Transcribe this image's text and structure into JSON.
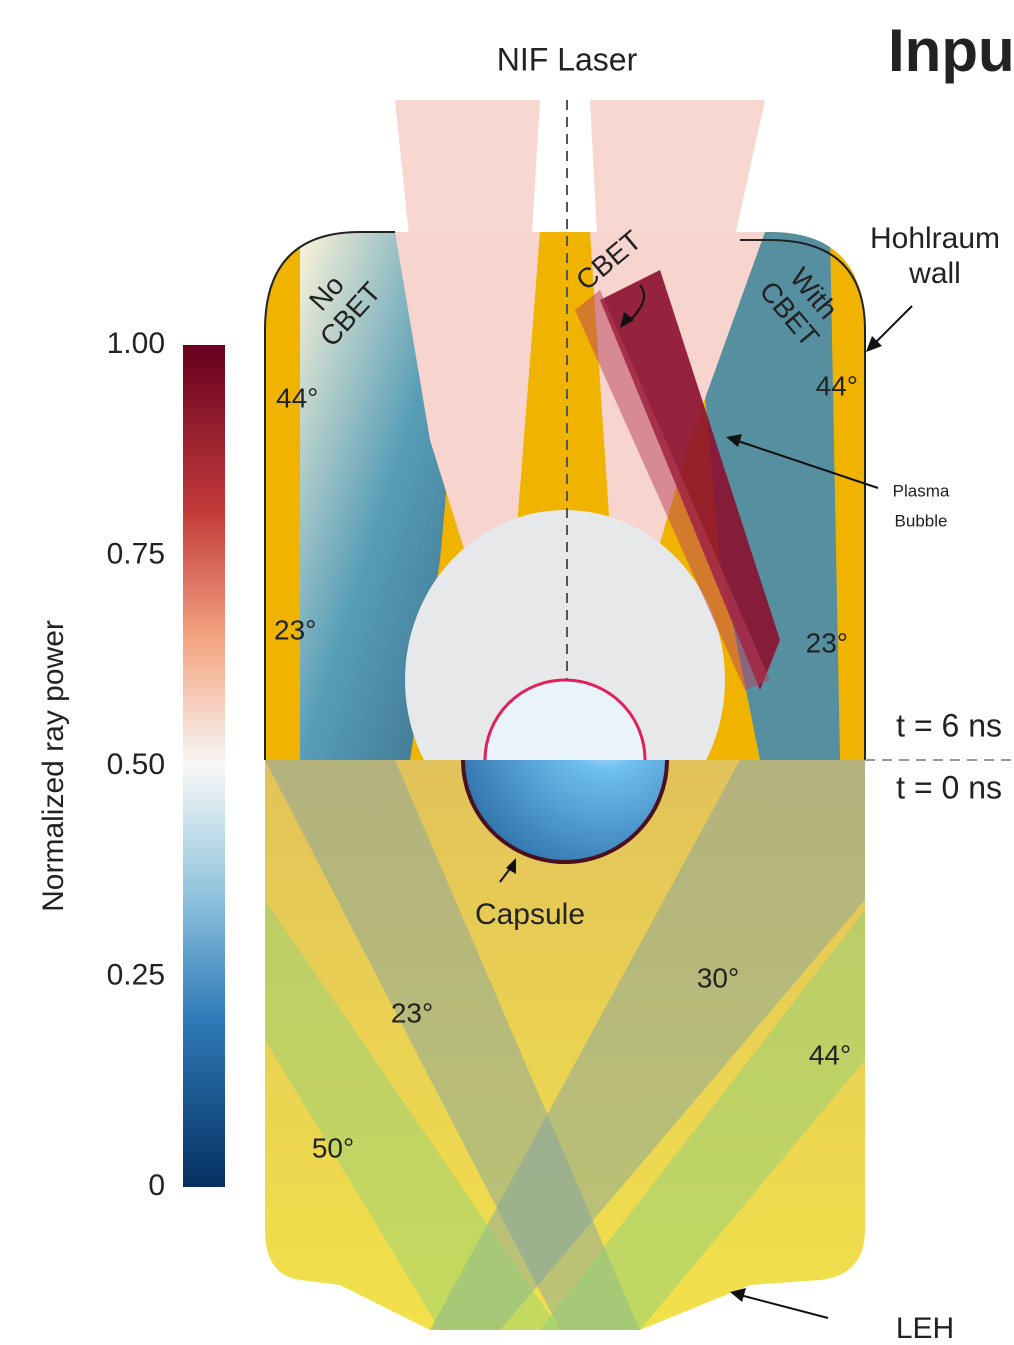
{
  "header": {
    "laser_label": "NIF Laser",
    "title_fragment": "Inpu"
  },
  "colorbar": {
    "label": "Normalized ray power",
    "range": [
      0,
      1
    ],
    "ticks": [
      {
        "value": 1,
        "label": "1.00"
      },
      {
        "value": 0.75,
        "label": "0.75"
      },
      {
        "value": 0.5,
        "label": "0.50"
      },
      {
        "value": 0.25,
        "label": "0.25"
      },
      {
        "value": 0,
        "label": "0"
      }
    ]
  },
  "upper": {
    "left_label": [
      "No",
      "CBET"
    ],
    "right_label": [
      "With",
      "CBET"
    ],
    "cbet_arrow_label": "CBET",
    "left_angles": [
      "44°",
      "23°"
    ],
    "right_angles": [
      "44°",
      "23°"
    ],
    "hohlraum_wall": [
      "Hohlraum",
      "wall"
    ],
    "plasma_bubble": [
      "Plasma",
      "Bubble"
    ],
    "time": "t = 6 ns"
  },
  "lower": {
    "time": "t = 0 ns",
    "capsule": "Capsule",
    "angles": [
      "23°",
      "30°",
      "44°",
      "50°"
    ],
    "leh": "LEH"
  }
}
